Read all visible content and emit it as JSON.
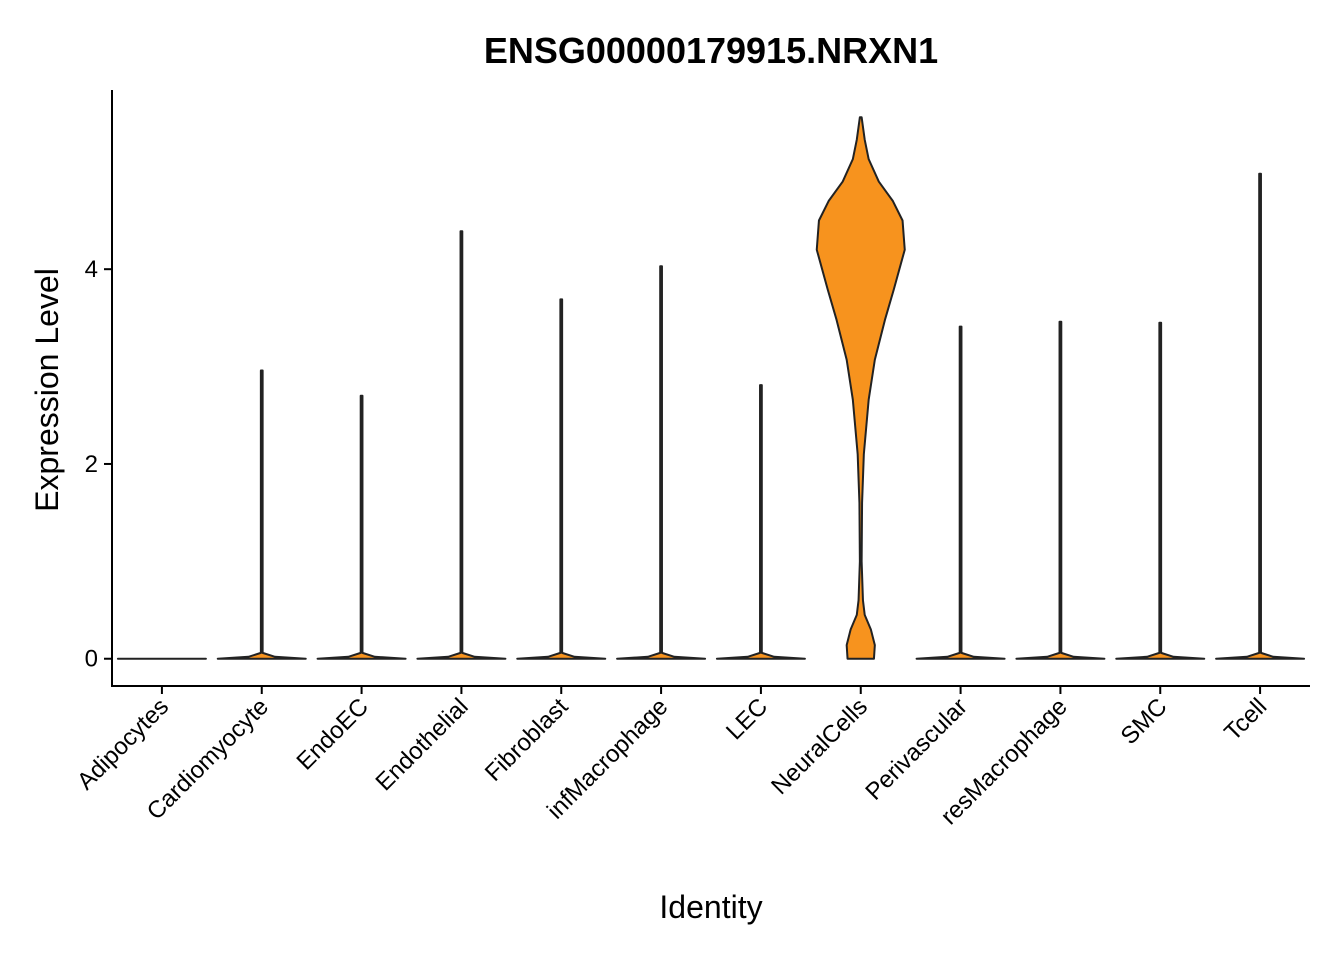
{
  "chart_data": {
    "type": "violin",
    "title": "ENSG00000179915.NRXN1",
    "x_label": "Identity",
    "y_label": "Expression Level",
    "categories": [
      "Adipocytes",
      "Cardiomyocyte",
      "EndoEC",
      "Endothelial",
      "Fibroblast",
      "infMacrophage",
      "LEC",
      "NeuralCells",
      "Perivascular",
      "resMacrophage",
      "SMC",
      "Tcell"
    ],
    "violins": [
      {
        "y": [
          0
        ],
        "density": [
          1
        ]
      },
      {
        "y": [
          0,
          0.02,
          0.06,
          2.96
        ],
        "density": [
          1,
          0.3,
          0.02,
          0.02
        ]
      },
      {
        "y": [
          0,
          0.02,
          0.06,
          2.7
        ],
        "density": [
          1,
          0.3,
          0.02,
          0.02
        ]
      },
      {
        "y": [
          0,
          0.02,
          0.06,
          4.39
        ],
        "density": [
          1,
          0.3,
          0.02,
          0.02
        ]
      },
      {
        "y": [
          0,
          0.02,
          0.06,
          3.69
        ],
        "density": [
          1,
          0.3,
          0.02,
          0.02
        ]
      },
      {
        "y": [
          0,
          0.02,
          0.06,
          4.03
        ],
        "density": [
          1,
          0.3,
          0.02,
          0.02
        ]
      },
      {
        "y": [
          0,
          0.02,
          0.06,
          2.81
        ],
        "density": [
          1,
          0.3,
          0.02,
          0.02
        ]
      },
      {
        "y": [
          0,
          0.14,
          0.3,
          0.45,
          0.6,
          1.0,
          1.6,
          2.1,
          2.66,
          3.07,
          3.48,
          3.79,
          4.2,
          4.5,
          4.7,
          4.9,
          5.13,
          5.33,
          5.56
        ],
        "density": [
          0.3,
          0.32,
          0.23,
          0.09,
          0.05,
          0.02,
          0.03,
          0.07,
          0.18,
          0.32,
          0.55,
          0.75,
          1,
          0.95,
          0.73,
          0.41,
          0.18,
          0.09,
          0.02
        ]
      },
      {
        "y": [
          0,
          0.02,
          0.06,
          3.41
        ],
        "density": [
          1,
          0.3,
          0.02,
          0.02
        ]
      },
      {
        "y": [
          0,
          0.02,
          0.06,
          3.46
        ],
        "density": [
          1,
          0.3,
          0.02,
          0.02
        ]
      },
      {
        "y": [
          0,
          0.02,
          0.06,
          3.45
        ],
        "density": [
          1,
          0.3,
          0.02,
          0.02
        ]
      },
      {
        "y": [
          0,
          0.02,
          0.06,
          4.98
        ],
        "density": [
          1,
          0.3,
          0.02,
          0.02
        ]
      }
    ],
    "color": "#f7931e",
    "ylim": [
      -0.28,
      5.84
    ],
    "yticks": [
      0,
      2,
      4
    ],
    "grid": false
  }
}
